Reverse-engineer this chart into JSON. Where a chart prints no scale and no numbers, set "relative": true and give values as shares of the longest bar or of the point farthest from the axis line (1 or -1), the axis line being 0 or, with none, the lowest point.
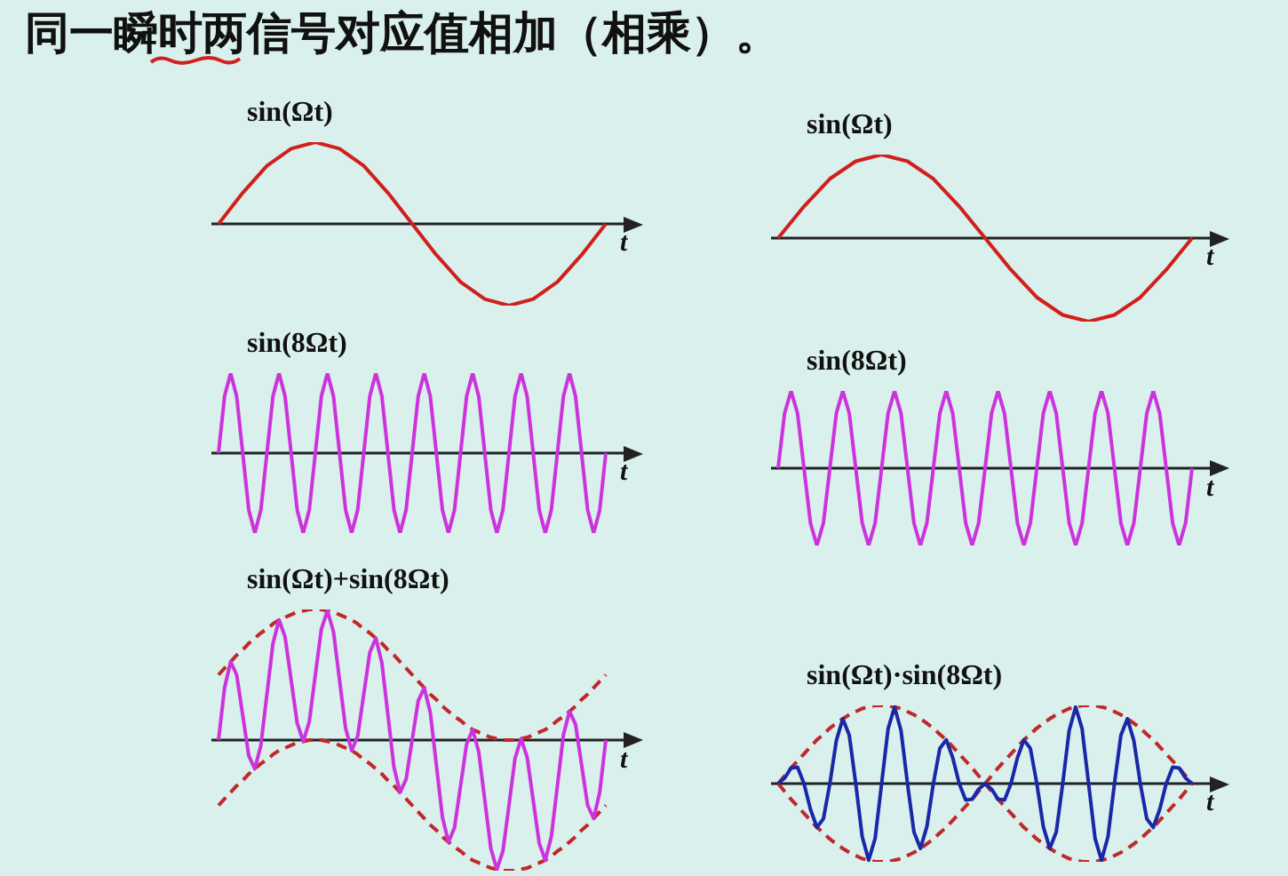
{
  "chart_data": [
    {
      "type": "line",
      "title": "sin(Ωt)",
      "xlabel": "t",
      "relative": true,
      "marker": "none",
      "annotations": [
        "同一瞬时两信号对应值相加（相乘）。"
      ],
      "categories": [
        null,
        null,
        null,
        null,
        null,
        null,
        null,
        null,
        null,
        null,
        null,
        null,
        null,
        null,
        null,
        null,
        null
      ],
      "series": [
        {
          "color": "#d0201e",
          "values": [
            0,
            0.38,
            0.71,
            0.92,
            1,
            0.92,
            0.71,
            0.38,
            0,
            -0.38,
            -0.71,
            -0.92,
            -1,
            -0.92,
            -0.71,
            -0.38,
            0
          ]
        }
      ]
    },
    {
      "type": "line",
      "title": "sin(Ωt)",
      "xlabel": "t",
      "relative": true,
      "marker": "none",
      "categories": [
        null,
        null,
        null,
        null,
        null,
        null,
        null,
        null,
        null,
        null,
        null,
        null,
        null,
        null,
        null,
        null,
        null
      ],
      "series": [
        {
          "color": "#d0201e",
          "values": [
            0,
            0.38,
            0.71,
            0.92,
            1,
            0.92,
            0.71,
            0.38,
            0,
            -0.38,
            -0.71,
            -0.92,
            -1,
            -0.92,
            -0.71,
            -0.38,
            0
          ]
        }
      ]
    },
    {
      "type": "line",
      "title": "sin(8Ωt)",
      "xlabel": "t",
      "relative": true,
      "marker": "none",
      "categories": [
        null,
        null,
        null,
        null,
        null,
        null,
        null,
        null,
        null,
        null,
        null,
        null,
        null,
        null,
        null,
        null,
        null,
        null,
        null,
        null,
        null,
        null,
        null,
        null,
        null,
        null,
        null,
        null,
        null,
        null,
        null,
        null,
        null,
        null,
        null,
        null,
        null,
        null,
        null,
        null,
        null,
        null,
        null,
        null,
        null,
        null,
        null,
        null,
        null,
        null,
        null,
        null,
        null,
        null,
        null,
        null,
        null,
        null,
        null,
        null,
        null,
        null,
        null,
        null,
        null
      ],
      "series": [
        {
          "color": "#cc33dd",
          "values": [
            0,
            0.71,
            1,
            0.71,
            0,
            -0.71,
            -1,
            -0.71,
            0,
            0.71,
            1,
            0.71,
            0,
            -0.71,
            -1,
            -0.71,
            0,
            0.71,
            1,
            0.71,
            0,
            -0.71,
            -1,
            -0.71,
            0,
            0.71,
            1,
            0.71,
            0,
            -0.71,
            -1,
            -0.71,
            0,
            0.71,
            1,
            0.71,
            0,
            -0.71,
            -1,
            -0.71,
            0,
            0.71,
            1,
            0.71,
            0,
            -0.71,
            -1,
            -0.71,
            0,
            0.71,
            1,
            0.71,
            0,
            -0.71,
            -1,
            -0.71,
            0,
            0.71,
            1,
            0.71,
            0,
            -0.71,
            -1,
            -0.71,
            0
          ]
        }
      ]
    },
    {
      "type": "line",
      "title": "sin(8Ωt)",
      "xlabel": "t",
      "relative": true,
      "marker": "none",
      "categories": [
        null,
        null,
        null,
        null,
        null,
        null,
        null,
        null,
        null,
        null,
        null,
        null,
        null,
        null,
        null,
        null,
        null,
        null,
        null,
        null,
        null,
        null,
        null,
        null,
        null,
        null,
        null,
        null,
        null,
        null,
        null,
        null,
        null,
        null,
        null,
        null,
        null,
        null,
        null,
        null,
        null,
        null,
        null,
        null,
        null,
        null,
        null,
        null,
        null,
        null,
        null,
        null,
        null,
        null,
        null,
        null,
        null,
        null,
        null,
        null,
        null,
        null,
        null,
        null,
        null
      ],
      "series": [
        {
          "color": "#cc33dd",
          "values": [
            0,
            0.71,
            1,
            0.71,
            0,
            -0.71,
            -1,
            -0.71,
            0,
            0.71,
            1,
            0.71,
            0,
            -0.71,
            -1,
            -0.71,
            0,
            0.71,
            1,
            0.71,
            0,
            -0.71,
            -1,
            -0.71,
            0,
            0.71,
            1,
            0.71,
            0,
            -0.71,
            -1,
            -0.71,
            0,
            0.71,
            1,
            0.71,
            0,
            -0.71,
            -1,
            -0.71,
            0,
            0.71,
            1,
            0.71,
            0,
            -0.71,
            -1,
            -0.71,
            0,
            0.71,
            1,
            0.71,
            0,
            -0.71,
            -1,
            -0.71,
            0,
            0.71,
            1,
            0.71,
            0,
            -0.71,
            -1,
            -0.71,
            0
          ]
        }
      ]
    },
    {
      "type": "line",
      "title": "sin(Ωt)+sin(8Ωt)",
      "xlabel": "t",
      "relative": true,
      "marker": "none",
      "categories": [
        null,
        null,
        null,
        null,
        null,
        null,
        null,
        null,
        null,
        null,
        null,
        null,
        null,
        null,
        null,
        null,
        null,
        null,
        null,
        null,
        null,
        null,
        null,
        null,
        null,
        null,
        null,
        null,
        null,
        null,
        null,
        null,
        null,
        null,
        null,
        null,
        null,
        null,
        null,
        null,
        null,
        null,
        null,
        null,
        null,
        null,
        null,
        null,
        null,
        null,
        null,
        null,
        null,
        null,
        null,
        null,
        null,
        null,
        null,
        null,
        null,
        null,
        null,
        null,
        null
      ],
      "series": [
        {
          "color": "#cc33dd",
          "values": [
            0,
            0.4,
            0.6,
            0.5,
            0.19,
            -0.12,
            -0.22,
            -0.04,
            0.35,
            0.74,
            0.92,
            0.79,
            0.46,
            0.13,
            -0.01,
            0.14,
            0.5,
            0.85,
            0.99,
            0.83,
            0.46,
            0.09,
            -0.08,
            0.03,
            0.35,
            0.67,
            0.78,
            0.59,
            0.19,
            -0.21,
            -0.4,
            -0.3,
            0,
            0.3,
            0.4,
            0.21,
            -0.19,
            -0.59,
            -0.78,
            -0.67,
            -0.35,
            -0.03,
            0.08,
            -0.09,
            -0.46,
            -0.83,
            -0.99,
            -0.85,
            -0.5,
            -0.14,
            0.01,
            -0.13,
            -0.46,
            -0.79,
            -0.92,
            -0.74,
            -0.35,
            0.04,
            0.22,
            0.12,
            -0.19,
            -0.5,
            -0.6,
            -0.4,
            0
          ]
        },
        {
          "color": "#c0282a",
          "line_style": "dashed",
          "values": [
            0.5,
            0.55,
            0.6,
            0.65,
            0.69,
            0.74,
            0.78,
            0.82,
            0.85,
            0.89,
            0.92,
            0.94,
            0.96,
            0.98,
            0.99,
            1,
            1,
            1,
            0.99,
            0.98,
            0.96,
            0.94,
            0.92,
            0.89,
            0.85,
            0.82,
            0.78,
            0.74,
            0.69,
            0.65,
            0.6,
            0.55,
            0.5,
            0.45,
            0.4,
            0.35,
            0.31,
            0.26,
            0.22,
            0.18,
            0.15,
            0.11,
            0.08,
            0.06,
            0.04,
            0.02,
            0.01,
            0,
            0,
            0,
            0.01,
            0.02,
            0.04,
            0.06,
            0.08,
            0.11,
            0.15,
            0.18,
            0.22,
            0.26,
            0.31,
            0.35,
            0.4,
            0.45,
            0.5
          ]
        },
        {
          "color": "#c0282a",
          "line_style": "dashed",
          "values": [
            -0.5,
            -0.45,
            -0.4,
            -0.35,
            -0.31,
            -0.26,
            -0.22,
            -0.18,
            -0.15,
            -0.11,
            -0.08,
            -0.06,
            -0.04,
            -0.02,
            -0.01,
            0,
            0,
            0,
            -0.01,
            -0.02,
            -0.04,
            -0.06,
            -0.08,
            -0.11,
            -0.15,
            -0.18,
            -0.22,
            -0.26,
            -0.31,
            -0.35,
            -0.4,
            -0.45,
            -0.5,
            -0.55,
            -0.6,
            -0.65,
            -0.69,
            -0.74,
            -0.78,
            -0.82,
            -0.85,
            -0.89,
            -0.92,
            -0.94,
            -0.96,
            -0.98,
            -0.99,
            -1,
            -1,
            -1,
            -0.99,
            -0.98,
            -0.96,
            -0.94,
            -0.92,
            -0.89,
            -0.85,
            -0.82,
            -0.78,
            -0.74,
            -0.69,
            -0.65,
            -0.6,
            -0.55,
            -0.5
          ]
        }
      ]
    },
    {
      "type": "line",
      "title": "sin(Ωt)·sin(8Ωt)",
      "xlabel": "t",
      "relative": true,
      "marker": "none",
      "categories": [
        null,
        null,
        null,
        null,
        null,
        null,
        null,
        null,
        null,
        null,
        null,
        null,
        null,
        null,
        null,
        null,
        null,
        null,
        null,
        null,
        null,
        null,
        null,
        null,
        null,
        null,
        null,
        null,
        null,
        null,
        null,
        null,
        null,
        null,
        null,
        null,
        null,
        null,
        null,
        null,
        null,
        null,
        null,
        null,
        null,
        null,
        null,
        null,
        null,
        null,
        null,
        null,
        null,
        null,
        null,
        null,
        null,
        null,
        null,
        null,
        null,
        null,
        null,
        null,
        null
      ],
      "series": [
        {
          "color": "#1a28a8",
          "values": [
            0,
            0.07,
            0.2,
            0.21,
            0,
            -0.33,
            -0.56,
            -0.45,
            0,
            0.55,
            0.83,
            0.62,
            0,
            -0.68,
            -0.98,
            -0.7,
            0,
            0.7,
            0.98,
            0.68,
            0,
            -0.62,
            -0.83,
            -0.55,
            0,
            0.45,
            0.56,
            0.33,
            0,
            -0.21,
            -0.2,
            -0.07,
            0,
            -0.07,
            -0.2,
            -0.21,
            0,
            0.33,
            0.56,
            0.45,
            0,
            -0.55,
            -0.83,
            -0.62,
            0,
            0.68,
            0.98,
            0.7,
            0,
            -0.7,
            -0.98,
            -0.68,
            0,
            0.62,
            0.83,
            0.55,
            0,
            -0.45,
            -0.56,
            -0.33,
            0,
            0.21,
            0.2,
            0.07,
            0
          ]
        },
        {
          "color": "#c0282a",
          "line_style": "dashed",
          "values": [
            0,
            0.1,
            0.2,
            0.29,
            0.38,
            0.47,
            0.56,
            0.63,
            0.71,
            0.77,
            0.83,
            0.88,
            0.92,
            0.96,
            0.98,
            1,
            1,
            1,
            0.98,
            0.96,
            0.92,
            0.88,
            0.83,
            0.77,
            0.71,
            0.63,
            0.56,
            0.47,
            0.38,
            0.29,
            0.2,
            0.1,
            0,
            0.1,
            0.2,
            0.29,
            0.38,
            0.47,
            0.56,
            0.63,
            0.71,
            0.77,
            0.83,
            0.88,
            0.92,
            0.96,
            0.98,
            1,
            1,
            1,
            0.98,
            0.96,
            0.92,
            0.88,
            0.83,
            0.77,
            0.71,
            0.63,
            0.56,
            0.47,
            0.38,
            0.29,
            0.2,
            0.1,
            0
          ]
        },
        {
          "color": "#c0282a",
          "line_style": "dashed",
          "values": [
            0,
            -0.1,
            -0.2,
            -0.29,
            -0.38,
            -0.47,
            -0.56,
            -0.63,
            -0.71,
            -0.77,
            -0.83,
            -0.88,
            -0.92,
            -0.96,
            -0.98,
            -1,
            -1,
            -1,
            -0.98,
            -0.96,
            -0.92,
            -0.88,
            -0.83,
            -0.77,
            -0.71,
            -0.63,
            -0.56,
            -0.47,
            -0.38,
            -0.29,
            -0.2,
            -0.1,
            0,
            -0.1,
            -0.2,
            -0.29,
            -0.38,
            -0.47,
            -0.56,
            -0.63,
            -0.71,
            -0.77,
            -0.83,
            -0.88,
            -0.92,
            -0.96,
            -0.98,
            -1,
            -1,
            -1,
            -0.98,
            -0.96,
            -0.92,
            -0.88,
            -0.83,
            -0.77,
            -0.71,
            -0.63,
            -0.56,
            -0.47,
            -0.38,
            -0.29,
            -0.2,
            -0.1,
            0
          ]
        }
      ]
    }
  ]
}
